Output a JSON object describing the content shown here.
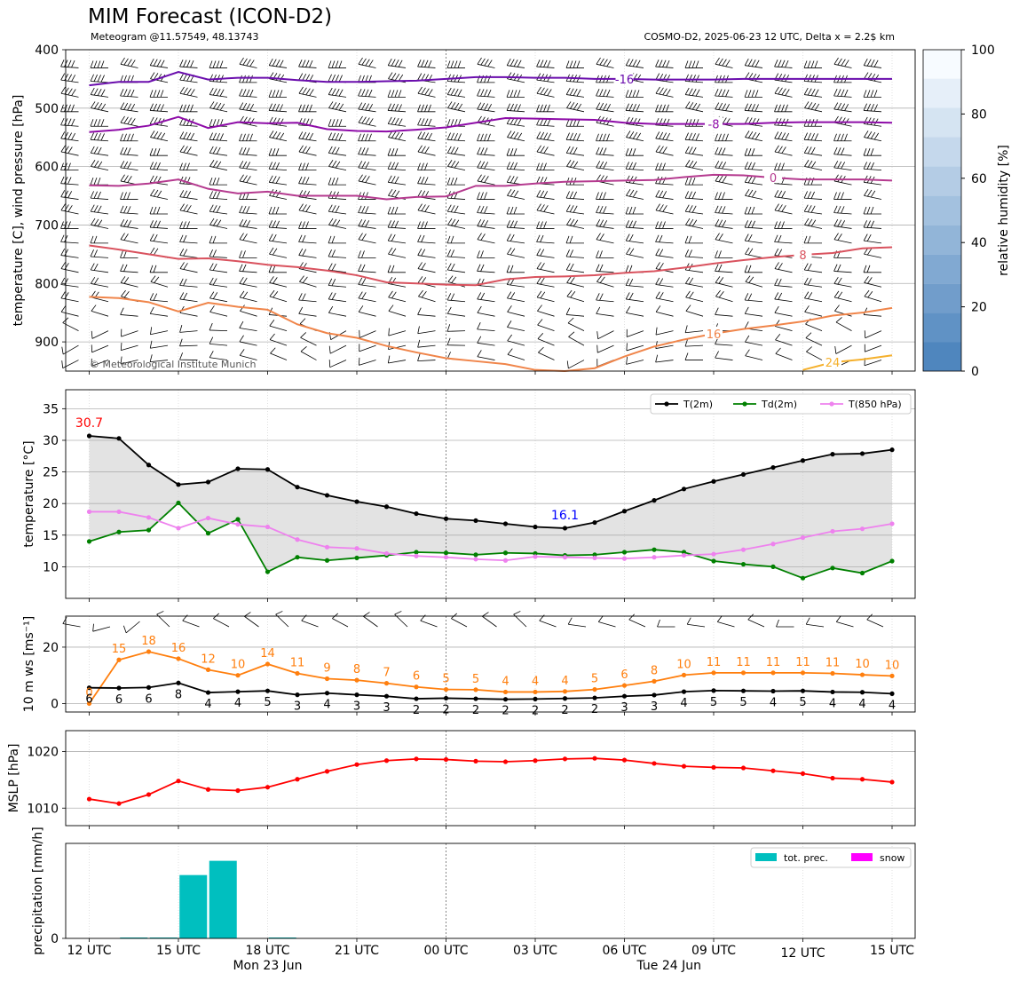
{
  "title": "MIM Forecast (ICON-D2)",
  "subtitle_left": "Meteogram @11.57549, 48.13743",
  "subtitle_right": "COSMO-D2, 2025-06-23 12 UTC, Delta x = 2.2$ km",
  "copyright": "© Meteorological Institute Munich",
  "time_axis": {
    "ticks": [
      "12 UTC",
      "15 UTC",
      "18 UTC",
      "21 UTC",
      "00 UTC",
      "03 UTC",
      "06 UTC",
      "09 UTC",
      "12 UTC",
      "15 UTC"
    ],
    "day_labels": [
      {
        "label": "Mon 23 Jun",
        "at": 6
      },
      {
        "label": "Tue 24 Jun",
        "at": 27
      }
    ]
  },
  "colors": {
    "t2m": "#000000",
    "td2m": "#008000",
    "t850": "#ee82ee",
    "wind_speed": "#ff7f0e",
    "mslp": "#ff0000",
    "precip": "#00bfbf",
    "snow": "#ff00ff"
  },
  "chart_data": [
    {
      "type": "contour",
      "id": "upper_air",
      "ylabel": "temperature [C], wind pressure [hPa]",
      "ylim": [
        950,
        400
      ],
      "yticks": [
        400,
        500,
        600,
        700,
        800,
        900
      ],
      "colorbar": {
        "label": "relative humidity [%]",
        "range": [
          0,
          100
        ],
        "ticks": [
          0,
          20,
          40,
          60,
          80,
          100
        ]
      },
      "isotherms": [
        {
          "label": "-16",
          "color": "#6a0dad",
          "p": [
            461,
            455,
            455,
            438,
            451,
            448,
            448,
            452,
            455,
            455,
            454,
            453,
            450,
            447,
            447,
            448,
            448,
            450,
            450,
            451,
            451,
            451,
            450,
            450,
            450,
            450,
            450,
            450
          ]
        },
        {
          "label": "-8",
          "color": "#8e0ca8",
          "p": [
            541,
            537,
            530,
            515,
            534,
            524,
            526,
            525,
            536,
            539,
            540,
            537,
            533,
            525,
            517,
            518,
            519,
            520,
            525,
            527,
            527,
            527,
            527,
            525,
            524,
            524,
            524,
            525
          ]
        },
        {
          "label": "0",
          "color": "#b53a8f",
          "p": [
            632,
            633,
            629,
            622,
            638,
            646,
            643,
            650,
            650,
            650,
            656,
            652,
            651,
            633,
            633,
            629,
            626,
            625,
            624,
            623,
            618,
            614,
            615,
            619,
            622,
            622,
            622,
            624
          ]
        },
        {
          "label": "8",
          "color": "#d9525e",
          "p": [
            735,
            742,
            750,
            758,
            757,
            762,
            768,
            772,
            778,
            786,
            798,
            800,
            802,
            803,
            793,
            789,
            788,
            786,
            782,
            779,
            773,
            766,
            760,
            755,
            751,
            748,
            740,
            738
          ]
        },
        {
          "label": "16",
          "color": "#f0854a",
          "p": [
            823,
            825,
            832,
            848,
            833,
            840,
            845,
            870,
            885,
            893,
            907,
            918,
            928,
            933,
            938,
            948,
            952,
            945,
            925,
            908,
            896,
            886,
            878,
            872,
            865,
            855,
            850,
            842
          ]
        },
        {
          "label": "24",
          "color": "#f5b02c",
          "p": [
            null,
            null,
            null,
            null,
            null,
            null,
            null,
            null,
            null,
            null,
            null,
            null,
            null,
            null,
            null,
            null,
            null,
            null,
            null,
            null,
            null,
            null,
            null,
            null,
            948,
            935,
            930,
            923
          ]
        }
      ]
    },
    {
      "type": "line",
      "id": "temperature",
      "ylabel": "temperature [$^\\circ$C]",
      "ylim": [
        5,
        38
      ],
      "yticks": [
        10,
        15,
        20,
        25,
        30,
        35
      ],
      "annotations": [
        {
          "text": "30.7",
          "color": "#ff0000",
          "at": 0
        },
        {
          "text": "16.1",
          "color": "#0000ff",
          "at": 16
        }
      ],
      "series": [
        {
          "name": "T(2m)",
          "color": "#000000",
          "values": [
            30.7,
            30.3,
            26.1,
            23.0,
            23.4,
            25.5,
            25.4,
            22.6,
            21.3,
            20.3,
            19.5,
            18.4,
            17.6,
            17.3,
            16.8,
            16.3,
            16.1,
            17.0,
            18.8,
            20.5,
            22.3,
            23.5,
            24.6,
            25.7,
            26.8,
            27.8,
            27.9,
            28.5
          ]
        },
        {
          "name": "Td(2m)",
          "color": "#008000",
          "values": [
            14.0,
            15.5,
            15.8,
            20.1,
            15.3,
            17.5,
            9.2,
            11.5,
            11.0,
            11.4,
            11.8,
            12.3,
            12.2,
            11.9,
            12.2,
            12.1,
            11.8,
            11.9,
            12.3,
            12.7,
            12.3,
            10.9,
            10.4,
            10.0,
            8.2,
            9.8,
            9.0,
            10.9
          ]
        },
        {
          "name": "T(850 hPa)",
          "color": "#ee82ee",
          "values": [
            18.7,
            18.7,
            17.8,
            16.1,
            17.7,
            16.7,
            16.3,
            14.3,
            13.1,
            12.9,
            12.1,
            11.7,
            11.5,
            11.2,
            11.0,
            11.6,
            11.5,
            11.4,
            11.3,
            11.5,
            11.8,
            12.0,
            12.7,
            13.6,
            14.6,
            15.6,
            16.0,
            16.8
          ]
        }
      ]
    },
    {
      "type": "line",
      "id": "wind10m",
      "ylabel": "10 m ws [ms$^{-1}$]",
      "ylim": [
        -3,
        31
      ],
      "yticks": [
        0,
        20
      ],
      "series": [
        {
          "name": "gust",
          "color": "#ff7f0e",
          "values": [
            0,
            15.5,
            18.4,
            15.9,
            12,
            10,
            14,
            10.7,
            8.8,
            8.3,
            7.2,
            5.9,
            5,
            4.9,
            4.1,
            4.1,
            4.3,
            5,
            6.4,
            7.9,
            10.1,
            10.9,
            10.9,
            10.9,
            10.9,
            10.7,
            10.2,
            9.8
          ]
        },
        {
          "name": "mean",
          "color": "#000000",
          "values": [
            5.6,
            5.5,
            5.7,
            7.3,
            3.9,
            4.2,
            4.5,
            3.1,
            3.7,
            3.1,
            2.6,
            1.7,
            1.9,
            1.7,
            1.5,
            1.6,
            1.8,
            2,
            2.6,
            3,
            4.2,
            4.6,
            4.5,
            4.4,
            4.5,
            4.1,
            4,
            3.5
          ]
        }
      ],
      "gust_labels": [
        "0",
        "15",
        "18",
        "16",
        "12",
        "10",
        "14",
        "11",
        "9",
        "8",
        "7",
        "6",
        "5",
        "5",
        "4",
        "4",
        "4",
        "5",
        "6",
        "8",
        "10",
        "11",
        "11",
        "11",
        "11",
        "11",
        "10",
        "10"
      ],
      "mean_labels": [
        "6",
        "6",
        "6",
        "8",
        "4",
        "4",
        "5",
        "3",
        "4",
        "3",
        "3",
        "2",
        "2",
        "2",
        "2",
        "2",
        "2",
        "2",
        "3",
        "3",
        "4",
        "5",
        "5",
        "4",
        "5",
        "4",
        "4",
        "4"
      ]
    },
    {
      "type": "line",
      "id": "mslp",
      "ylabel": "MSLP [hPa]",
      "ylim": [
        1006.9,
        1023.7
      ],
      "yticks": [
        1010,
        1020
      ],
      "series": [
        {
          "name": "MSLP",
          "color": "#ff0000",
          "values": [
            1011.6,
            1010.8,
            1012.4,
            1014.8,
            1013.3,
            1013.1,
            1013.7,
            1015.1,
            1016.5,
            1017.7,
            1018.4,
            1018.7,
            1018.6,
            1018.3,
            1018.2,
            1018.4,
            1018.7,
            1018.8,
            1018.5,
            1017.9,
            1017.4,
            1017.2,
            1017.1,
            1016.6,
            1016.1,
            1015.3,
            1015.1,
            1014.6
          ]
        }
      ]
    },
    {
      "type": "bar",
      "id": "precipitation",
      "ylabel": "precipitation [mm/h]",
      "ylim": [
        0,
        1.2
      ],
      "yticks": [
        0
      ],
      "series": [
        {
          "name": "tot. prec.",
          "color": "#00bfbf",
          "values": [
            0,
            0.01,
            0.01,
            0.8,
            0.98,
            0,
            0.01,
            0,
            0,
            0,
            0,
            0,
            0,
            0,
            0,
            0,
            0,
            0,
            0,
            0,
            0,
            0,
            0,
            0,
            0,
            0,
            0
          ]
        },
        {
          "name": "snow",
          "color": "#ff00ff",
          "values": [
            0,
            0,
            0,
            0,
            0,
            0,
            0,
            0,
            0,
            0,
            0,
            0,
            0,
            0,
            0,
            0,
            0,
            0,
            0,
            0,
            0,
            0,
            0,
            0,
            0,
            0,
            0
          ]
        }
      ]
    }
  ]
}
